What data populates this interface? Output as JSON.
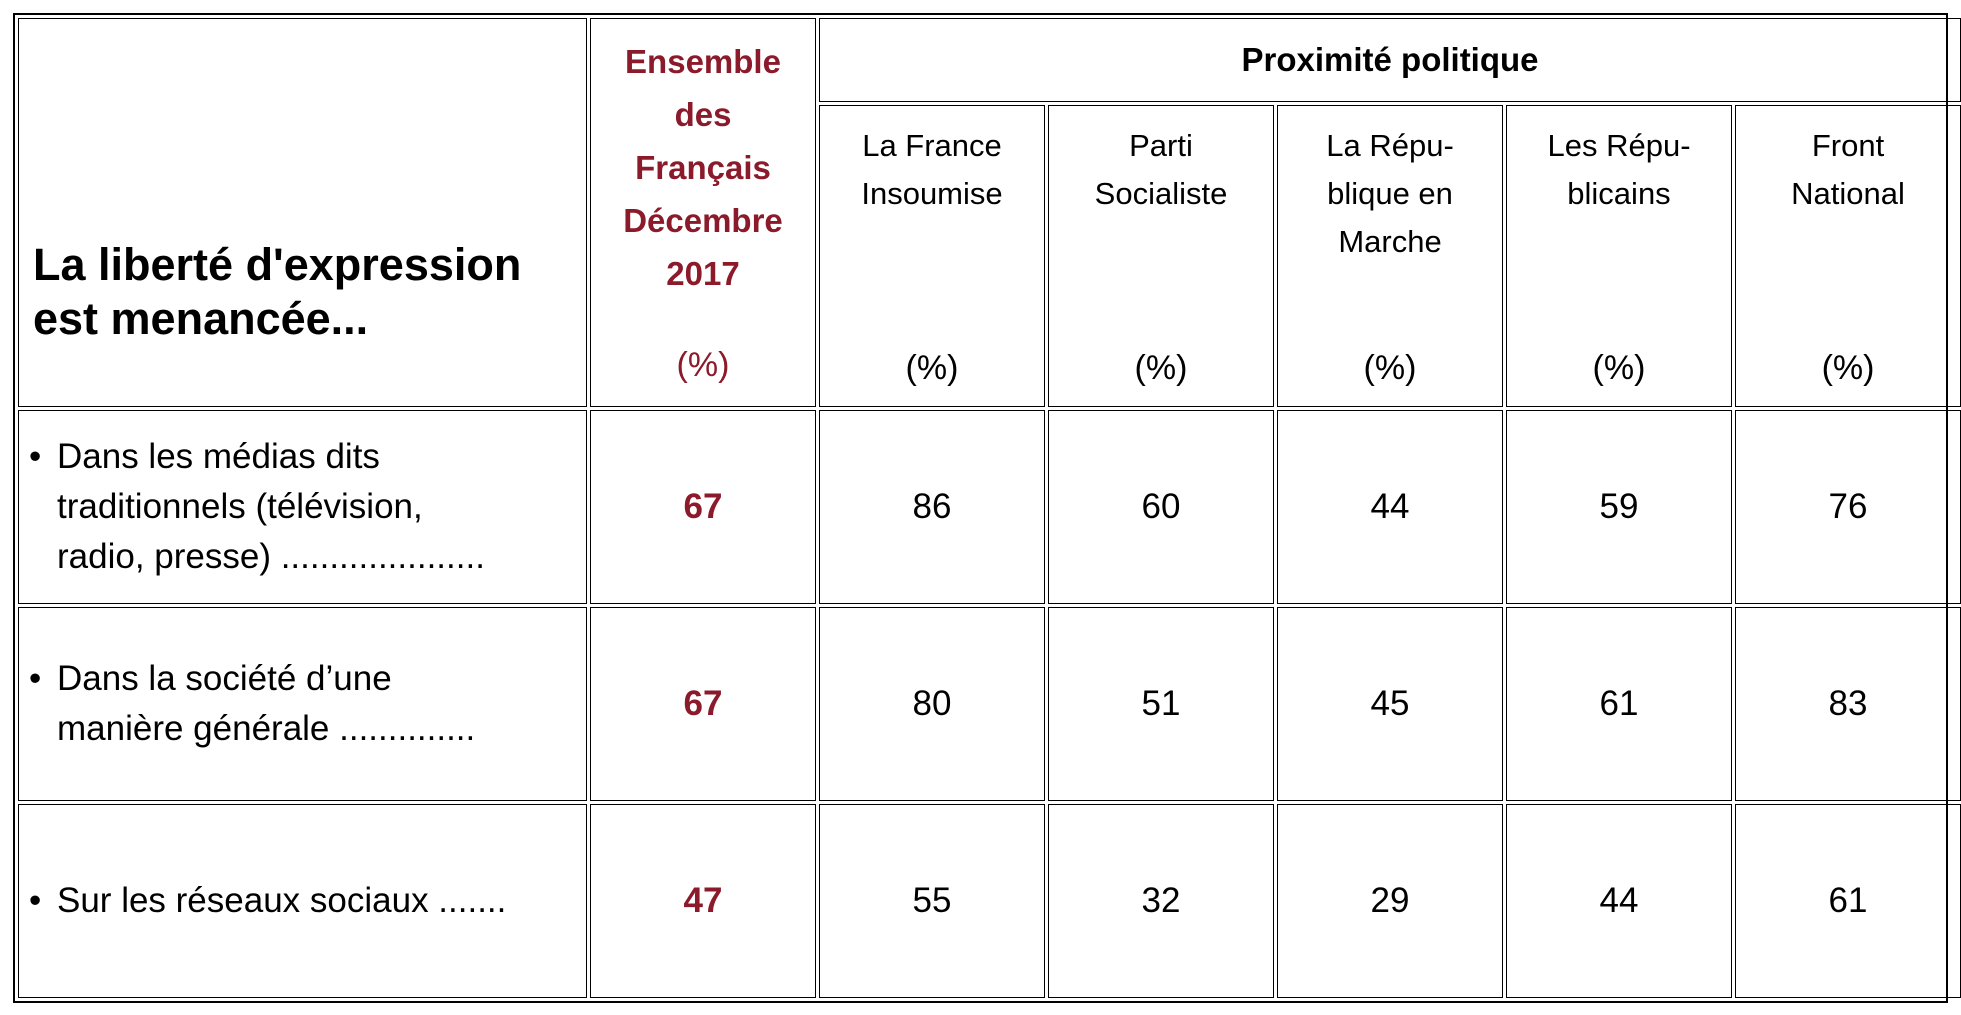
{
  "chart_data": {
    "type": "table",
    "title": "La liberté d'expression est menancée...",
    "ensemble_header": {
      "lines": [
        "Ensemble",
        "des",
        "Français",
        "Décembre",
        "2017"
      ],
      "unit": "(%)"
    },
    "group_header": "Proximité politique",
    "columns": [
      {
        "lines": [
          "La France",
          "Insoumise"
        ],
        "unit": "(%)"
      },
      {
        "lines": [
          "Parti",
          "Socialiste"
        ],
        "unit": "(%)"
      },
      {
        "lines": [
          "La Répu-",
          "blique en",
          "Marche"
        ],
        "unit": "(%)"
      },
      {
        "lines": [
          "Les Répu-",
          "blicains"
        ],
        "unit": "(%)"
      },
      {
        "lines": [
          "Front",
          "National"
        ],
        "unit": "(%)"
      }
    ],
    "rows": [
      {
        "bullet": "•",
        "label_lines": [
          "Dans les médias dits",
          "traditionnels (télévision,",
          "radio, presse) ....................."
        ],
        "ensemble": 67,
        "values": [
          86,
          60,
          44,
          59,
          76
        ]
      },
      {
        "bullet": "•",
        "label_lines": [
          "Dans la société d’une",
          "manière générale  .............."
        ],
        "ensemble": 67,
        "values": [
          80,
          51,
          45,
          61,
          83
        ]
      },
      {
        "bullet": "•",
        "label_lines": [
          "Sur les réseaux sociaux ......."
        ],
        "ensemble": 47,
        "values": [
          55,
          32,
          29,
          44,
          61
        ]
      }
    ],
    "colors": {
      "accent": "#8b1a2b",
      "text": "#000000"
    }
  }
}
